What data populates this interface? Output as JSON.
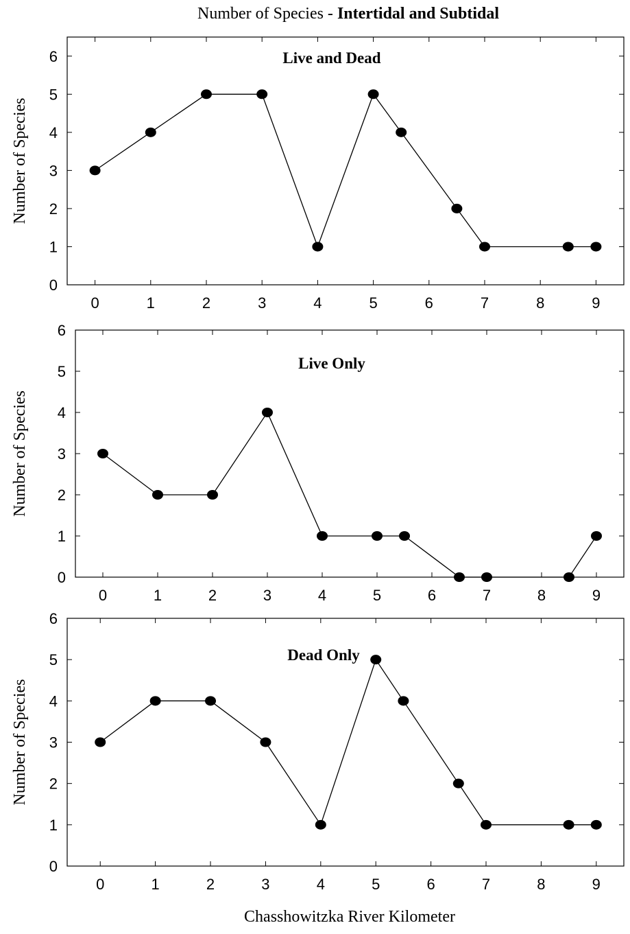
{
  "figure": {
    "title_prefix": "Number of Species - ",
    "title_bold": "Intertidal and Subtidal",
    "shared_xlabel": "Chasshowitzka River Kilometer"
  },
  "chart_data": [
    {
      "type": "line",
      "title": "Live and Dead",
      "xlabel": "",
      "ylabel": "Number of Species",
      "xlim": [
        -0.5,
        9.5
      ],
      "ylim": [
        0,
        6.5
      ],
      "xticks": [
        0,
        1,
        2,
        3,
        4,
        5,
        6,
        7,
        8,
        9
      ],
      "yticks": [
        0,
        1,
        2,
        3,
        4,
        5,
        6
      ],
      "x": [
        0,
        1,
        2,
        3,
        4,
        5,
        5.5,
        6.5,
        7,
        8.5,
        9
      ],
      "y": [
        3,
        4,
        5,
        5,
        1,
        5,
        4,
        2,
        1,
        1,
        1
      ],
      "grid": false
    },
    {
      "type": "line",
      "title": "Live Only",
      "xlabel": "",
      "ylabel": "Number of Species",
      "xlim": [
        -0.5,
        9.5
      ],
      "ylim": [
        0,
        6
      ],
      "xticks": [
        0,
        1,
        2,
        3,
        4,
        5,
        6,
        7,
        8,
        9
      ],
      "yticks": [
        0,
        1,
        2,
        3,
        4,
        5,
        6
      ],
      "x": [
        0,
        1,
        2,
        3,
        4,
        5,
        5.5,
        6.5,
        7,
        8.5,
        9
      ],
      "y": [
        3,
        2,
        2,
        4,
        1,
        1,
        1,
        0,
        0,
        0,
        1
      ],
      "grid": false
    },
    {
      "type": "line",
      "title": "Dead Only",
      "xlabel": "Chasshowitzka River Kilometer",
      "ylabel": "Number of Species",
      "xlim": [
        -0.6,
        9.5
      ],
      "ylim": [
        0,
        6
      ],
      "xticks": [
        0,
        1,
        2,
        3,
        4,
        5,
        6,
        7,
        8,
        9
      ],
      "yticks": [
        0,
        1,
        2,
        3,
        4,
        5,
        6
      ],
      "x": [
        0,
        1,
        2,
        3,
        4,
        5,
        5.5,
        6.5,
        7,
        8.5,
        9
      ],
      "y": [
        3,
        4,
        4,
        3,
        1,
        5,
        4,
        2,
        1,
        1,
        1
      ],
      "grid": false
    }
  ]
}
